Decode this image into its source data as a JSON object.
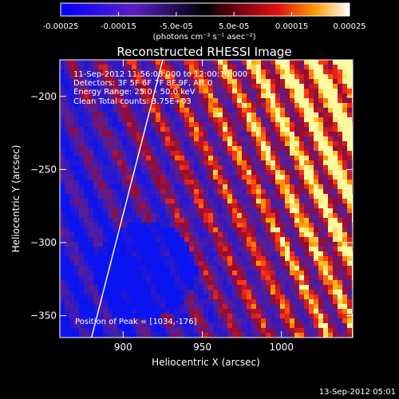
{
  "colorbar": {
    "ticks": [
      "-0.00025",
      "-0.00015",
      "-5.0e-05",
      "5.0e-05",
      "0.00015",
      "0.00025"
    ],
    "unit_label": "(photons cm⁻² s⁻¹ asec⁻²)",
    "range": [
      -0.00025,
      0.00025
    ]
  },
  "chart_data": {
    "type": "heatmap",
    "title": "Reconstructed RHESSI Image",
    "xlabel": "Heliocentric X (arcsec)",
    "ylabel": "Heliocentric Y (arcsec)",
    "xlim": [
      860,
      1045
    ],
    "ylim": [
      -365,
      -175
    ],
    "x_ticks": [
      900,
      950,
      1000
    ],
    "y_ticks": [
      -200,
      -250,
      -300,
      -350
    ],
    "annotations": [
      "11-Sep-2012 11:56:08.000 to 12:00:10.000",
      "Detectors: 3F 5F 6F 7F 8F 9F, Att 0",
      "Energy Range: 25.0 - 50.0 keV",
      "Clean     Total counts: 3.75E+03"
    ],
    "peak_label": "Position of Peak = [1034,-176]",
    "peak": [
      1034,
      -176
    ],
    "limb": [
      [
        880,
        -365
      ],
      [
        925,
        -175
      ]
    ]
  },
  "footer": {
    "timestamp": "13-Sep-2012 05:01"
  }
}
